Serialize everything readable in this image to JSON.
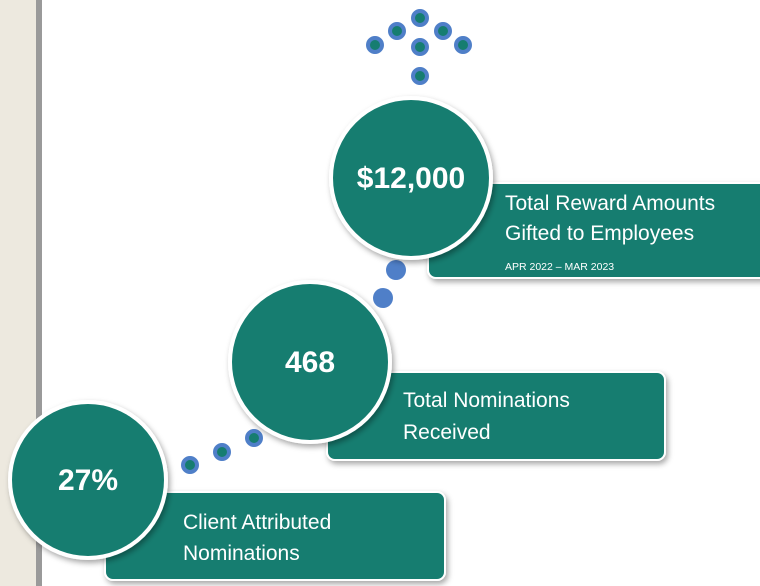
{
  "stats": [
    {
      "value": "27%",
      "label": [
        "Client Attributed",
        "Nominations"
      ]
    },
    {
      "value": "468",
      "label": [
        "Total Nominations",
        "Received"
      ]
    },
    {
      "value": "$12,000",
      "label": [
        "Total Reward Amounts",
        "Gifted to Employees"
      ],
      "subtitle": "APR 2022 – MAR 2023"
    }
  ]
}
